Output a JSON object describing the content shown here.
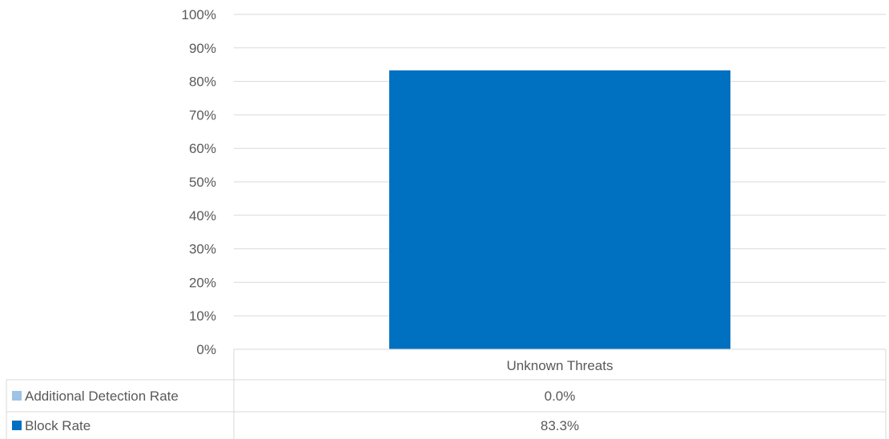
{
  "chart_data": {
    "type": "bar",
    "stacked": true,
    "categories": [
      "Unknown Threats"
    ],
    "series": [
      {
        "name": "Additional Detection Rate",
        "values": [
          0.0
        ],
        "labels": [
          "0.0%"
        ],
        "color": "#9DC3E6"
      },
      {
        "name": "Block Rate",
        "values": [
          83.3
        ],
        "labels": [
          "83.3%"
        ],
        "color": "#0070C0"
      }
    ],
    "ylim": [
      0,
      100
    ],
    "ytick_labels": [
      "0%",
      "10%",
      "20%",
      "30%",
      "40%",
      "50%",
      "60%",
      "70%",
      "80%",
      "90%",
      "100%"
    ],
    "grid": true,
    "legend": "data-table-below",
    "title": "",
    "xlabel": "",
    "ylabel": ""
  }
}
